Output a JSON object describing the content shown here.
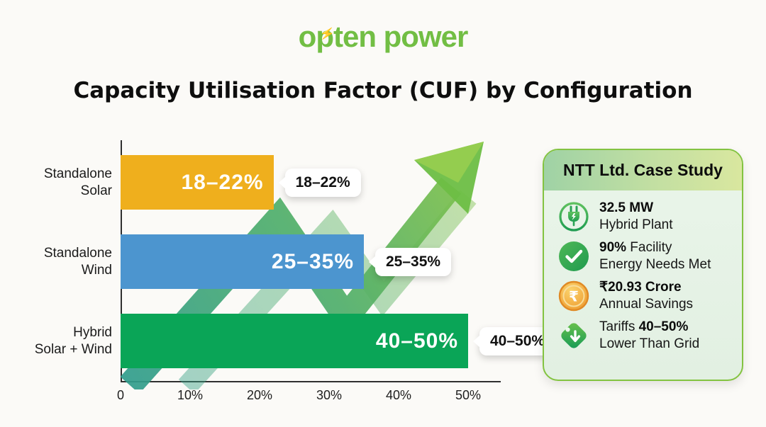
{
  "logo": {
    "part1": "o",
    "part2": "p",
    "part3": "ten power",
    "bolt": "⚡",
    "color": "#72be44",
    "bolt_color": "#2e9bd6"
  },
  "title": "Capacity Utilisation Factor (CUF) by Configuration",
  "chart_data": {
    "type": "bar",
    "orientation": "horizontal",
    "title": "Capacity Utilisation Factor (CUF) by Configuration",
    "categories": [
      "Standalone Solar",
      "Standalone Wind",
      "Hybrid Solar + Wind"
    ],
    "category_lines": [
      [
        "Standalone",
        "Solar"
      ],
      [
        "Standalone",
        "Wind"
      ],
      [
        "Hybrid",
        "Solar + Wind"
      ]
    ],
    "values_range": [
      [
        18,
        22
      ],
      [
        25,
        35
      ],
      [
        40,
        50
      ]
    ],
    "bar_plot_values": [
      22,
      35,
      50
    ],
    "bar_labels": [
      "18–22%",
      "25–35%",
      "40–50%"
    ],
    "callout_labels": [
      "18–22%",
      "25–35%",
      "40–50%"
    ],
    "bar_colors": [
      "#efaf1d",
      "#4c95cf",
      "#0aa557"
    ],
    "xlim": [
      0,
      50
    ],
    "xticks": [
      "0",
      "10%",
      "20%",
      "30%",
      "40%",
      "50%"
    ],
    "ylabel": "",
    "xlabel": "",
    "grid": false,
    "legend": "none",
    "annotations": [
      "growth-arrow"
    ]
  },
  "case_study": {
    "header": "NTT Ltd. Case Study",
    "items": [
      {
        "icon": "plug-icon",
        "line1_pre": "",
        "line1_bold": "32.5 MW",
        "line1_post": "",
        "line2": "Hybrid Plant"
      },
      {
        "icon": "check-icon",
        "line1_pre": "",
        "line1_bold": "90%",
        "line1_post": " Facility",
        "line2": "Energy Needs Met"
      },
      {
        "icon": "rupee-coin-icon",
        "line1_pre": "",
        "line1_bold": "₹20.93 Crore",
        "line1_post": "",
        "line2": "Annual Savings"
      },
      {
        "icon": "tag-down-icon",
        "line1_pre": "Tariffs ",
        "line1_bold": "40–50%",
        "line1_post": "",
        "line2": "Lower Than Grid"
      }
    ]
  },
  "colors": {
    "background": "#fbfaf7",
    "bar_solar": "#efaf1d",
    "bar_wind": "#4c95cf",
    "bar_hybrid": "#0aa557",
    "arrow_gradient_start": "#2f9c8e",
    "arrow_gradient_end": "#8cc63f",
    "card_border": "#83c341",
    "card_body_bg": "#e8f3e7",
    "card_header_gradient": [
      "#9fd2a5",
      "#d9e79f"
    ],
    "logo_green": "#72be44",
    "logo_bolt_blue": "#2e9bd6"
  }
}
